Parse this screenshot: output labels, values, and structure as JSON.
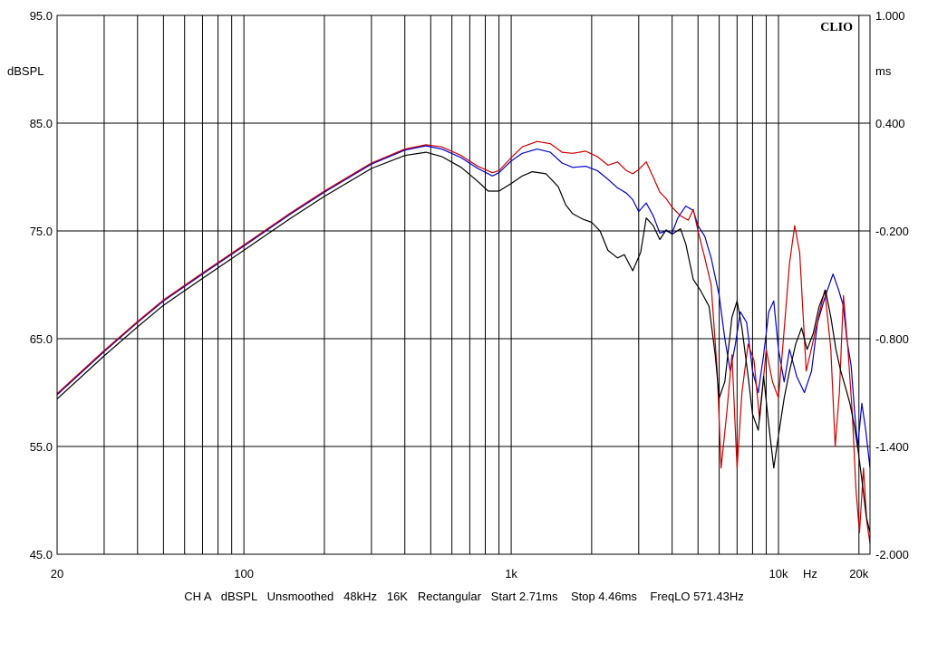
{
  "chart_data": {
    "type": "line",
    "brand": "CLIO",
    "x_scale": "log",
    "xlim": [
      20,
      22000
    ],
    "x_ticks": [
      {
        "value": 20,
        "label": "20"
      },
      {
        "value": 100,
        "label": "100"
      },
      {
        "value": 1000,
        "label": "1k"
      },
      {
        "value": 10000,
        "label": "10k"
      },
      {
        "value": 20000,
        "label": "20k"
      }
    ],
    "xlabel": "Hz",
    "y_left": {
      "label": "dBSPL",
      "lim": [
        45,
        95
      ],
      "ticks": [
        "45.0",
        "55.0",
        "65.0",
        "75.0",
        "85.0",
        "95.0"
      ]
    },
    "y_right": {
      "label": "ms",
      "lim": [
        -2.0,
        1.0
      ],
      "ticks": [
        "-2.000",
        "-1.400",
        "-0.800",
        "-0.200",
        "0.400",
        "1.000"
      ]
    },
    "grid": true,
    "series": [
      {
        "color": "#0000cc",
        "points": [
          [
            20,
            59.8
          ],
          [
            30,
            63.8
          ],
          [
            40,
            66.5
          ],
          [
            50,
            68.5
          ],
          [
            70,
            71.0
          ],
          [
            100,
            73.6
          ],
          [
            150,
            76.6
          ],
          [
            200,
            78.6
          ],
          [
            300,
            81.2
          ],
          [
            400,
            82.5
          ],
          [
            480,
            82.9
          ],
          [
            550,
            82.6
          ],
          [
            650,
            81.8
          ],
          [
            750,
            80.8
          ],
          [
            850,
            80.1
          ],
          [
            900,
            80.4
          ],
          [
            1000,
            81.5
          ],
          [
            1100,
            82.2
          ],
          [
            1250,
            82.6
          ],
          [
            1400,
            82.3
          ],
          [
            1550,
            81.3
          ],
          [
            1700,
            80.9
          ],
          [
            1900,
            81.0
          ],
          [
            2100,
            80.6
          ],
          [
            2300,
            79.8
          ],
          [
            2500,
            79.0
          ],
          [
            2700,
            78.5
          ],
          [
            2850,
            77.9
          ],
          [
            3000,
            76.8
          ],
          [
            3200,
            77.6
          ],
          [
            3400,
            76.4
          ],
          [
            3600,
            74.8
          ],
          [
            3800,
            75.0
          ],
          [
            4000,
            74.8
          ],
          [
            4200,
            76.2
          ],
          [
            4500,
            77.3
          ],
          [
            4800,
            76.9
          ],
          [
            5000,
            75.5
          ],
          [
            5300,
            74.5
          ],
          [
            5600,
            72.5
          ],
          [
            6000,
            69.0
          ],
          [
            6300,
            65.0
          ],
          [
            6600,
            62.0
          ],
          [
            6900,
            64.5
          ],
          [
            7200,
            67.5
          ],
          [
            7600,
            66.5
          ],
          [
            8000,
            62.0
          ],
          [
            8400,
            60.0
          ],
          [
            8800,
            63.5
          ],
          [
            9200,
            67.5
          ],
          [
            9600,
            68.5
          ],
          [
            10000,
            64.0
          ],
          [
            10500,
            61.0
          ],
          [
            11000,
            64.0
          ],
          [
            11700,
            61.5
          ],
          [
            12500,
            60.0
          ],
          [
            13300,
            62.0
          ],
          [
            14000,
            66.5
          ],
          [
            15000,
            69.0
          ],
          [
            16000,
            71.0
          ],
          [
            16800,
            69.5
          ],
          [
            17500,
            68.0
          ],
          [
            18000,
            65.0
          ],
          [
            18700,
            62.5
          ],
          [
            19300,
            58.0
          ],
          [
            19800,
            55.0
          ],
          [
            20500,
            59.0
          ],
          [
            21200,
            56.5
          ],
          [
            22000,
            53.0
          ]
        ]
      },
      {
        "color": "#cc0000",
        "points": [
          [
            20,
            59.9
          ],
          [
            30,
            63.9
          ],
          [
            40,
            66.6
          ],
          [
            50,
            68.6
          ],
          [
            70,
            71.1
          ],
          [
            100,
            73.7
          ],
          [
            150,
            76.7
          ],
          [
            200,
            78.7
          ],
          [
            300,
            81.3
          ],
          [
            400,
            82.6
          ],
          [
            480,
            83.0
          ],
          [
            550,
            82.8
          ],
          [
            650,
            82.0
          ],
          [
            750,
            81.0
          ],
          [
            850,
            80.4
          ],
          [
            900,
            80.6
          ],
          [
            1000,
            81.8
          ],
          [
            1100,
            82.8
          ],
          [
            1250,
            83.3
          ],
          [
            1400,
            83.1
          ],
          [
            1550,
            82.3
          ],
          [
            1700,
            82.2
          ],
          [
            1900,
            82.4
          ],
          [
            2100,
            81.9
          ],
          [
            2300,
            81.1
          ],
          [
            2500,
            81.4
          ],
          [
            2700,
            80.6
          ],
          [
            2850,
            80.3
          ],
          [
            3000,
            80.7
          ],
          [
            3200,
            81.4
          ],
          [
            3400,
            80.0
          ],
          [
            3600,
            78.6
          ],
          [
            3800,
            78.0
          ],
          [
            4000,
            77.2
          ],
          [
            4300,
            76.4
          ],
          [
            4600,
            76.0
          ],
          [
            4800,
            77.0
          ],
          [
            5000,
            75.0
          ],
          [
            5300,
            72.5
          ],
          [
            5600,
            70.0
          ],
          [
            5900,
            62.0
          ],
          [
            6100,
            53.0
          ],
          [
            6400,
            58.0
          ],
          [
            6700,
            63.5
          ],
          [
            7000,
            53.0
          ],
          [
            7300,
            60.0
          ],
          [
            7700,
            64.5
          ],
          [
            8100,
            63.0
          ],
          [
            8500,
            57.5
          ],
          [
            9000,
            64.0
          ],
          [
            9500,
            61.0
          ],
          [
            10000,
            59.5
          ],
          [
            10400,
            64.5
          ],
          [
            11000,
            72.0
          ],
          [
            11500,
            75.5
          ],
          [
            12000,
            73.0
          ],
          [
            12700,
            62.0
          ],
          [
            13400,
            64.5
          ],
          [
            14100,
            67.0
          ],
          [
            14900,
            69.5
          ],
          [
            15700,
            64.0
          ],
          [
            16300,
            55.0
          ],
          [
            16900,
            60.0
          ],
          [
            17500,
            69.0
          ],
          [
            18200,
            64.0
          ],
          [
            18900,
            58.0
          ],
          [
            19500,
            51.0
          ],
          [
            20100,
            47.0
          ],
          [
            20800,
            53.0
          ],
          [
            21400,
            48.0
          ],
          [
            22000,
            46.0
          ]
        ]
      },
      {
        "color": "#000000",
        "points": [
          [
            20,
            59.4
          ],
          [
            30,
            63.4
          ],
          [
            40,
            66.1
          ],
          [
            50,
            68.1
          ],
          [
            70,
            70.6
          ],
          [
            100,
            73.2
          ],
          [
            150,
            76.2
          ],
          [
            200,
            78.2
          ],
          [
            300,
            80.8
          ],
          [
            400,
            82.0
          ],
          [
            480,
            82.3
          ],
          [
            550,
            81.9
          ],
          [
            650,
            80.9
          ],
          [
            750,
            79.6
          ],
          [
            820,
            78.7
          ],
          [
            900,
            78.7
          ],
          [
            1000,
            79.4
          ],
          [
            1100,
            80.1
          ],
          [
            1200,
            80.5
          ],
          [
            1350,
            80.3
          ],
          [
            1500,
            79.1
          ],
          [
            1600,
            77.4
          ],
          [
            1700,
            76.6
          ],
          [
            1850,
            76.1
          ],
          [
            2000,
            75.8
          ],
          [
            2150,
            75.0
          ],
          [
            2300,
            73.2
          ],
          [
            2500,
            72.5
          ],
          [
            2650,
            72.8
          ],
          [
            2850,
            71.3
          ],
          [
            3050,
            73.0
          ],
          [
            3200,
            76.2
          ],
          [
            3400,
            75.5
          ],
          [
            3600,
            74.2
          ],
          [
            3800,
            75.1
          ],
          [
            4000,
            74.7
          ],
          [
            4300,
            75.2
          ],
          [
            4500,
            73.8
          ],
          [
            4800,
            70.5
          ],
          [
            5100,
            69.5
          ],
          [
            5500,
            68.0
          ],
          [
            5800,
            63.5
          ],
          [
            6000,
            59.5
          ],
          [
            6300,
            61.0
          ],
          [
            6700,
            67.0
          ],
          [
            7000,
            68.5
          ],
          [
            7300,
            66.0
          ],
          [
            7700,
            61.5
          ],
          [
            8000,
            58.0
          ],
          [
            8400,
            56.5
          ],
          [
            8800,
            61.5
          ],
          [
            9200,
            57.0
          ],
          [
            9600,
            53.0
          ],
          [
            10000,
            56.0
          ],
          [
            10500,
            59.5
          ],
          [
            11000,
            62.0
          ],
          [
            11600,
            64.5
          ],
          [
            12200,
            66.0
          ],
          [
            12800,
            64.0
          ],
          [
            13500,
            65.5
          ],
          [
            14200,
            68.0
          ],
          [
            15000,
            69.5
          ],
          [
            15700,
            67.0
          ],
          [
            16400,
            64.0
          ],
          [
            17100,
            62.0
          ],
          [
            17800,
            60.5
          ],
          [
            18500,
            59.0
          ],
          [
            19200,
            57.0
          ],
          [
            19900,
            54.5
          ],
          [
            20600,
            51.5
          ],
          [
            21300,
            48.5
          ],
          [
            22000,
            47.0
          ]
        ]
      }
    ]
  },
  "footer": {
    "channel": "CH A",
    "unit": "dBSPL",
    "smoothing": "Unsmoothed",
    "rate": "48kHz",
    "size": "16K",
    "window": "Rectangular",
    "start": "Start 2.71ms",
    "stop": "Stop 4.46ms",
    "freqlo": "FreqLO 571.43Hz"
  }
}
